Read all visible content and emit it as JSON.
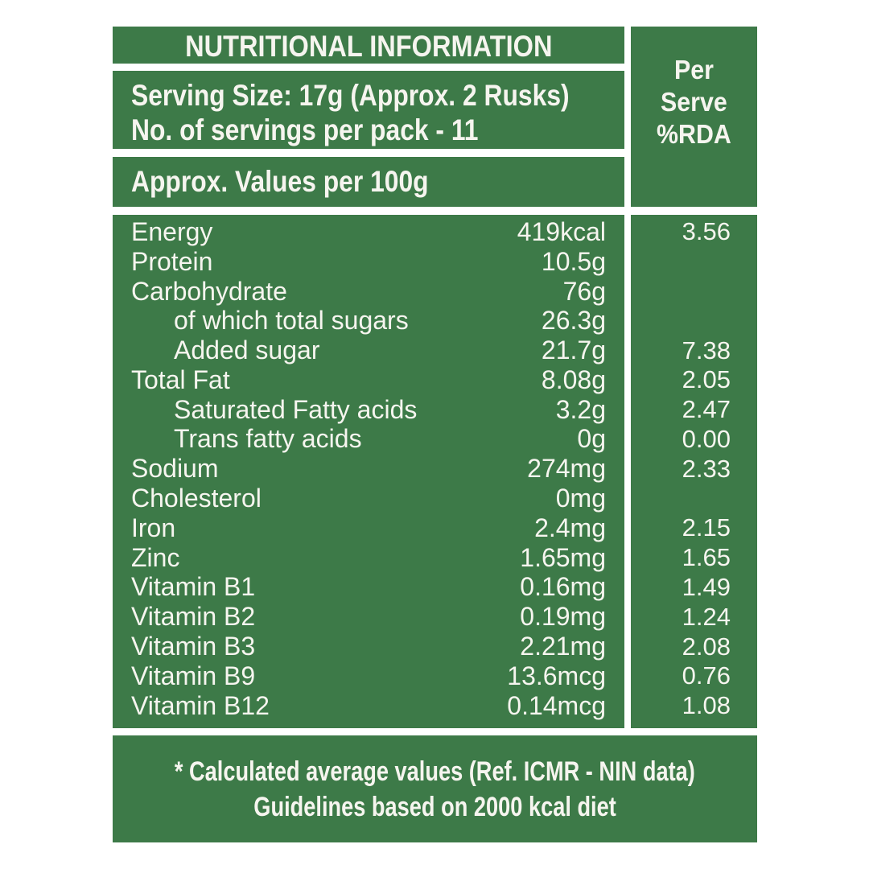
{
  "colors": {
    "panel_green": "#3d7a48",
    "text_white": "#f6f5ef",
    "background": "#ffffff"
  },
  "header": {
    "title": "NUTRITIONAL INFORMATION",
    "serving_size_line": "Serving Size: 17g (Approx. 2 Rusks)",
    "servings_per_pack_line": "No. of servings per pack - 11",
    "values_basis": "Approx. Values per 100g",
    "per_serve_header": "Per\nServe\n%RDA"
  },
  "table": {
    "rows": [
      {
        "label": "Energy",
        "value": "419kcal",
        "rda": "3.56",
        "indent": false
      },
      {
        "label": "Protein",
        "value": "10.5g",
        "rda": "",
        "indent": false
      },
      {
        "label": "Carbohydrate",
        "value": "76g",
        "rda": "",
        "indent": false
      },
      {
        "label": "of which total sugars",
        "value": "26.3g",
        "rda": "",
        "indent": true
      },
      {
        "label": "Added sugar",
        "value": "21.7g",
        "rda": "7.38",
        "indent": true
      },
      {
        "label": "Total Fat",
        "value": "8.08g",
        "rda": "2.05",
        "indent": false
      },
      {
        "label": "Saturated Fatty acids",
        "value": "3.2g",
        "rda": "2.47",
        "indent": true
      },
      {
        "label": "Trans fatty acids",
        "value": "0g",
        "rda": "0.00",
        "indent": true
      },
      {
        "label": "Sodium",
        "value": "274mg",
        "rda": "2.33",
        "indent": false
      },
      {
        "label": "Cholesterol",
        "value": "0mg",
        "rda": "",
        "indent": false
      },
      {
        "label": "Iron",
        "value": "2.4mg",
        "rda": "2.15",
        "indent": false
      },
      {
        "label": "Zinc",
        "value": "1.65mg",
        "rda": "1.65",
        "indent": false
      },
      {
        "label": "Vitamin B1",
        "value": "0.16mg",
        "rda": "1.49",
        "indent": false
      },
      {
        "label": "Vitamin B2",
        "value": "0.19mg",
        "rda": "1.24",
        "indent": false
      },
      {
        "label": "Vitamin B3",
        "value": "2.21mg",
        "rda": "2.08",
        "indent": false
      },
      {
        "label": "Vitamin B9",
        "value": "13.6mcg",
        "rda": "0.76",
        "indent": false
      },
      {
        "label": "Vitamin B12",
        "value": "0.14mcg",
        "rda": "1.08",
        "indent": false
      }
    ]
  },
  "footer": {
    "line1": "* Calculated average values (Ref. ICMR - NIN data)",
    "line2": "Guidelines based on 2000 kcal diet"
  }
}
